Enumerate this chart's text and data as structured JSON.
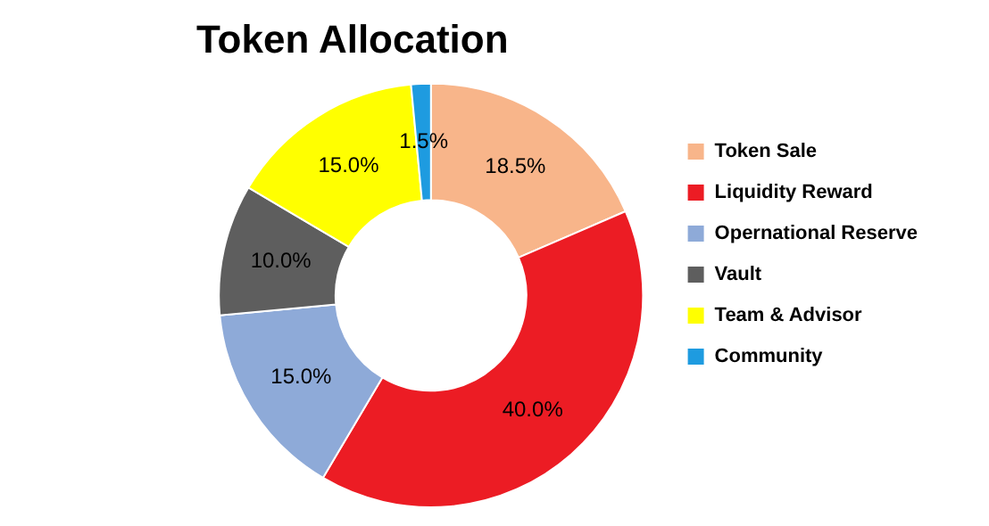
{
  "chart_data": {
    "type": "donut",
    "title": "Token Allocation",
    "categories": [
      "Token Sale",
      "Liquidity Reward",
      "Opernational Reserve",
      "Vault",
      "Team & Advisor",
      "Community"
    ],
    "values": [
      18.5,
      40.0,
      15.0,
      10.0,
      15.0,
      1.5
    ],
    "colors": [
      "#f8b58a",
      "#ec1c24",
      "#8eaad8",
      "#5e5e5e",
      "#ffff00",
      "#1e9be0"
    ],
    "value_labels": [
      "18.5%",
      "40.0%",
      "15.0%",
      "10.0%",
      "15.0%",
      "1.5%"
    ],
    "legend": "right"
  }
}
